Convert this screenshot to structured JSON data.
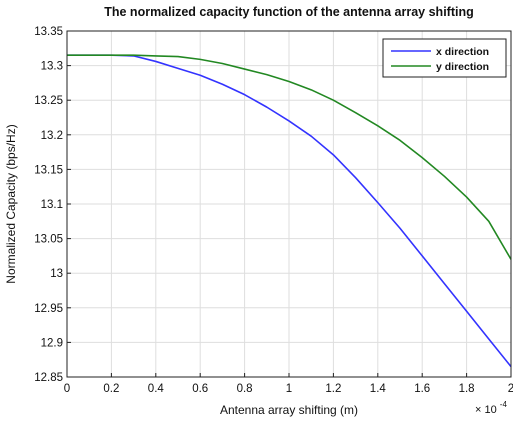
{
  "chart_data": {
    "type": "line",
    "title": "The normalized capacity function of the antenna array shifting",
    "xlabel": "Antenna array shifting (m)",
    "ylabel": "Normalized Capacity (bps/Hz)",
    "x_exponent_prefix": "× 10",
    "x_exponent_power": "-4",
    "xlim": [
      0,
      2
    ],
    "ylim": [
      12.85,
      13.35
    ],
    "x_ticks": [
      0,
      0.2,
      0.4,
      0.6,
      0.8,
      1,
      1.2,
      1.4,
      1.6,
      1.8,
      2
    ],
    "x_tick_labels": [
      "0",
      "0.2",
      "0.4",
      "0.6",
      "0.8",
      "1",
      "1.2",
      "1.4",
      "1.6",
      "1.8",
      "2"
    ],
    "y_ticks": [
      12.85,
      12.9,
      12.95,
      13,
      13.05,
      13.1,
      13.15,
      13.2,
      13.25,
      13.3,
      13.35
    ],
    "y_tick_labels": [
      "12.85",
      "12.9",
      "12.95",
      "13",
      "13.05",
      "13.1",
      "13.15",
      "13.2",
      "13.25",
      "13.3",
      "13.35"
    ],
    "grid": true,
    "legend_position": "top-right",
    "x": [
      0,
      0.1,
      0.2,
      0.3,
      0.4,
      0.5,
      0.6,
      0.7,
      0.8,
      0.9,
      1.0,
      1.1,
      1.2,
      1.3,
      1.4,
      1.5,
      1.6,
      1.7,
      1.8,
      1.9,
      2.0
    ],
    "series": [
      {
        "name": "x direction",
        "color": "#3333ff",
        "values": [
          13.315,
          13.315,
          13.315,
          13.314,
          13.306,
          13.296,
          13.286,
          13.273,
          13.258,
          13.24,
          13.22,
          13.198,
          13.171,
          13.138,
          13.102,
          13.065,
          13.025,
          12.985,
          12.945,
          12.905,
          12.865
        ]
      },
      {
        "name": "y direction",
        "color": "#228822",
        "values": [
          13.315,
          13.315,
          13.315,
          13.315,
          13.314,
          13.313,
          13.309,
          13.303,
          13.295,
          13.287,
          13.277,
          13.265,
          13.25,
          13.232,
          13.213,
          13.192,
          13.167,
          13.14,
          13.11,
          13.075,
          13.02
        ]
      }
    ]
  }
}
